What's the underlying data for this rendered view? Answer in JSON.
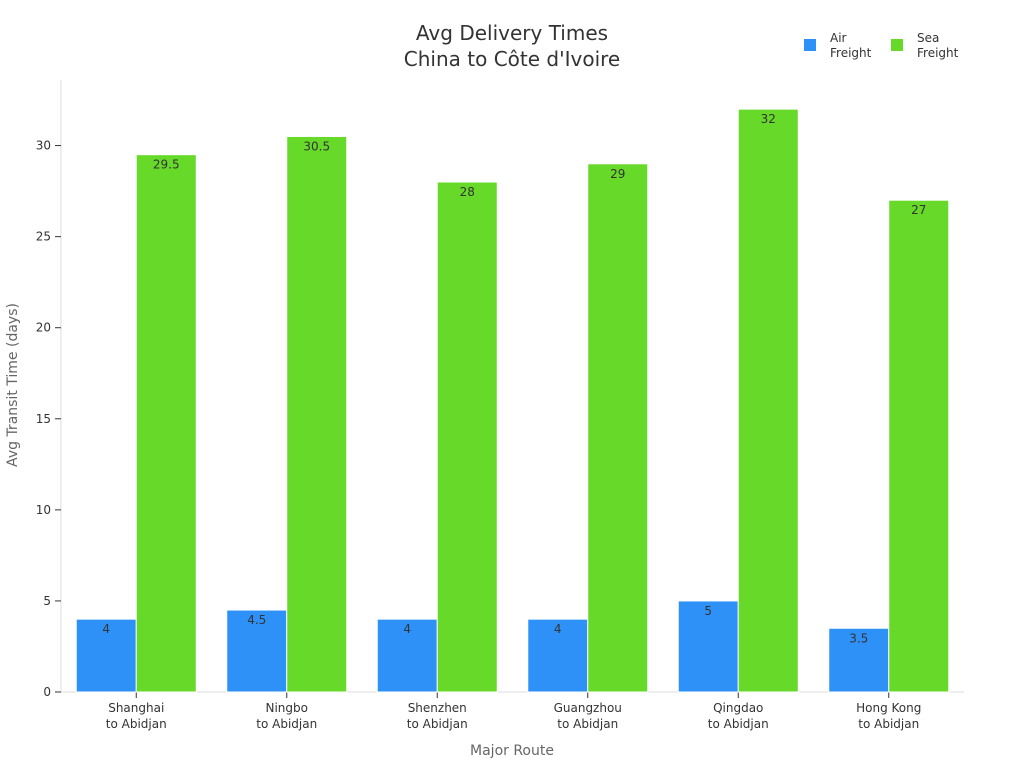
{
  "chart_data": {
    "type": "bar",
    "title": [
      "Avg Delivery Times",
      "China to Côte d'Ivoire"
    ],
    "xlabel": "Major Route",
    "ylabel": "Avg Transit Time (days)",
    "ylim": [
      0,
      33.6
    ],
    "yticks": [
      0,
      5,
      10,
      15,
      20,
      25,
      30
    ],
    "grid": false,
    "legend_position": "top-right",
    "categories": [
      [
        "Shanghai",
        "to Abidjan"
      ],
      [
        "Ningbo",
        "to Abidjan"
      ],
      [
        "Shenzhen",
        "to Abidjan"
      ],
      [
        "Guangzhou",
        "to Abidjan"
      ],
      [
        "Qingdao",
        "to Abidjan"
      ],
      [
        "Hong Kong",
        "to Abidjan"
      ]
    ],
    "series": [
      {
        "name": [
          "Air",
          "Freight"
        ],
        "color": "#2e91f7",
        "values": [
          4,
          4.5,
          4,
          4,
          5,
          3.5
        ]
      },
      {
        "name": [
          "Sea",
          "Freight"
        ],
        "color": "#66d929",
        "values": [
          29.5,
          30.5,
          28,
          29,
          32,
          27
        ]
      }
    ]
  }
}
